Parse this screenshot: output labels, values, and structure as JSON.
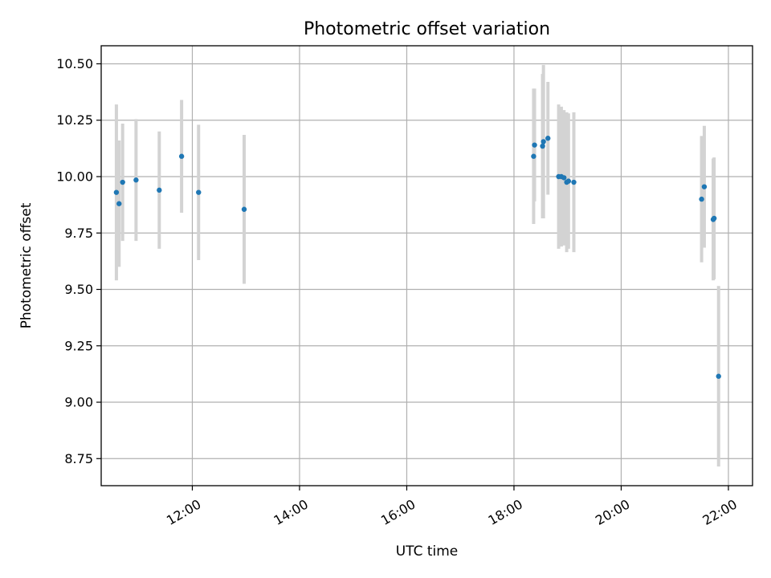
{
  "chart_data": {
    "type": "scatter",
    "title": "Photometric offset variation",
    "xlabel": "UTC time",
    "ylabel": "Photometric offset",
    "grid": true,
    "x_axis": {
      "type": "time",
      "date": "2000-01-01",
      "xlim": [
        "10:18",
        "22:27"
      ],
      "ticks": [
        "12:00",
        "14:00",
        "16:00",
        "18:00",
        "20:00",
        "22:00"
      ]
    },
    "y_axis": {
      "ylim": [
        8.63,
        10.58
      ],
      "ticks": [
        "8.75",
        "9.00",
        "9.25",
        "9.50",
        "9.75",
        "10.00",
        "10.25",
        "10.50"
      ]
    },
    "marker_color": "#1f77b4",
    "errorbar_color": "#d3d3d3",
    "points": [
      {
        "x": "10:35",
        "y": 9.93,
        "yerr": 0.39
      },
      {
        "x": "10:38",
        "y": 9.88,
        "yerr": 0.28
      },
      {
        "x": "10:42",
        "y": 9.975,
        "yerr": 0.26
      },
      {
        "x": "10:57",
        "y": 9.985,
        "yerr": 0.27
      },
      {
        "x": "11:23",
        "y": 9.94,
        "yerr": 0.26
      },
      {
        "x": "11:48",
        "y": 10.09,
        "yerr": 0.25
      },
      {
        "x": "12:07",
        "y": 9.93,
        "yerr": 0.3
      },
      {
        "x": "12:58",
        "y": 9.855,
        "yerr": 0.33
      },
      {
        "x": "18:22",
        "y": 10.09,
        "yerr": 0.3
      },
      {
        "x": "18:23",
        "y": 10.14,
        "yerr": 0.25
      },
      {
        "x": "18:32",
        "y": 10.135,
        "yerr": 0.32
      },
      {
        "x": "18:33",
        "y": 10.155,
        "yerr": 0.34
      },
      {
        "x": "18:38",
        "y": 10.17,
        "yerr": 0.25
      },
      {
        "x": "18:50",
        "y": 10.0,
        "yerr": 0.32
      },
      {
        "x": "18:53",
        "y": 10.0,
        "yerr": 0.31
      },
      {
        "x": "18:56",
        "y": 9.995,
        "yerr": 0.3
      },
      {
        "x": "18:59",
        "y": 9.975,
        "yerr": 0.31
      },
      {
        "x": "19:01",
        "y": 9.98,
        "yerr": 0.3
      },
      {
        "x": "19:07",
        "y": 9.975,
        "yerr": 0.31
      },
      {
        "x": "21:30",
        "y": 9.9,
        "yerr": 0.28
      },
      {
        "x": "21:33",
        "y": 9.955,
        "yerr": 0.27
      },
      {
        "x": "21:43",
        "y": 9.81,
        "yerr": 0.27
      },
      {
        "x": "21:44",
        "y": 9.815,
        "yerr": 0.27
      },
      {
        "x": "21:49",
        "y": 9.115,
        "yerr": 0.4
      }
    ]
  }
}
